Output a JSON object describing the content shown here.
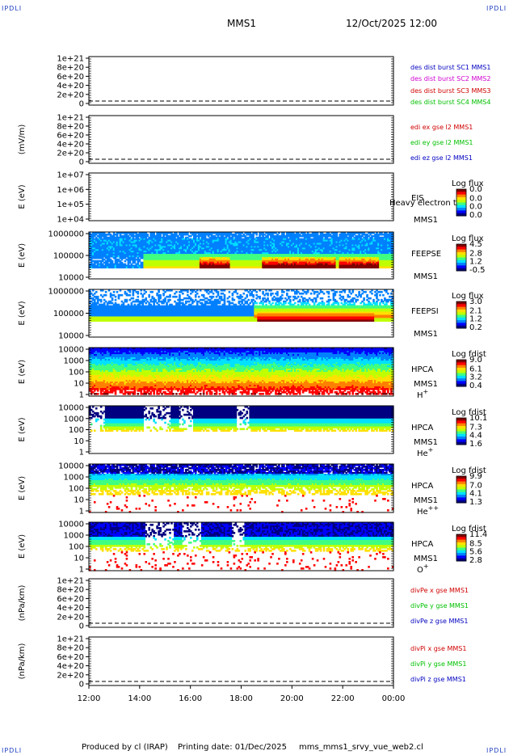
{
  "header": {
    "corner_label": "IPDLI",
    "mission": "MMS1",
    "datetime": "12/Oct/2025 12:00"
  },
  "footer": {
    "produced_by": "Produced by cl (IRAP)",
    "printing_date": "Printing date: 01/Dec/2025",
    "script": "mms_mms1_srvy_vue_web2.cl"
  },
  "colors": {
    "black": "#000000",
    "magenta": "#d000d0",
    "red": "#d00000",
    "green": "#00c000",
    "blue": "#0000c0",
    "colormap": [
      "#000080",
      "#0000ff",
      "#0080ff",
      "#00e0ff",
      "#40ff80",
      "#c0ff00",
      "#ffe000",
      "#ff8000",
      "#ff0000",
      "#800000"
    ]
  },
  "chart_data": [
    {
      "type": "line",
      "panel": "des dist burst",
      "ylabel": "",
      "ytick_labels": [
        "0",
        "2e+20",
        "4e+20",
        "6e+20",
        "8e+20",
        "1e+21"
      ],
      "ylim": [
        -2e+19,
        1.1e+21
      ],
      "zero_line": true,
      "legend": [
        {
          "name": "des dist burst SC1 MMS1",
          "color": "blue"
        },
        {
          "name": "des dist burst SC2 MMS2",
          "color": "magenta"
        },
        {
          "name": "des dist burst SC3 MMS3",
          "color": "red"
        },
        {
          "name": "des dist burst SC4 MMS4",
          "color": "green"
        }
      ],
      "series": []
    },
    {
      "type": "line",
      "panel": "edi e gse l2",
      "ylabel": "(mV/m)",
      "ytick_labels": [
        "0",
        "2e+20",
        "4e+20",
        "6e+20",
        "8e+20",
        "1e+21"
      ],
      "ylim": [
        -2e+19,
        1.1e+21
      ],
      "zero_line": true,
      "legend": [
        {
          "name": "edi ex gse l2 MMS1",
          "color": "red"
        },
        {
          "name": "edi ey gse l2 MMS1",
          "color": "green"
        },
        {
          "name": "edi ez gse l2 MMS1",
          "color": "blue"
        }
      ],
      "series": []
    },
    {
      "type": "heatmap",
      "panel": "EIS",
      "ylabel": "E (eV)",
      "ytick_labels": [
        "1e+04",
        "1e+05",
        "1e+06",
        "1e+07"
      ],
      "scale": "log",
      "ylim": [
        10000.0,
        10000000.0
      ],
      "instrument": [
        "EIS",
        "MMS1"
      ],
      "overlay_text": "Heavy electron to",
      "colorbar": {
        "title": "Log flux",
        "labels": [
          "0.0",
          "0.0",
          "0.0",
          "0.0"
        ]
      },
      "fill": "empty"
    },
    {
      "type": "heatmap",
      "panel": "FEEPSE",
      "ylabel": "E (eV)",
      "ytick_labels": [
        "10000",
        "100000",
        "1000000"
      ],
      "scale": "log",
      "ylim": [
        10000.0,
        1000000.0
      ],
      "instrument": [
        "FEEPSE",
        "MMS1"
      ],
      "colorbar": {
        "title": "Log flux",
        "labels": [
          "4.5",
          "2.8",
          "1.2",
          "-0.5"
        ]
      },
      "fill": "feepse"
    },
    {
      "type": "heatmap",
      "panel": "FEEPSI",
      "ylabel": "E (eV)",
      "ytick_labels": [
        "10000",
        "100000",
        "1000000"
      ],
      "scale": "log",
      "ylim": [
        10000.0,
        1000000.0
      ],
      "instrument": [
        "FEEPSI",
        "MMS1"
      ],
      "colorbar": {
        "title": "Log flux",
        "labels": [
          "3.0",
          "2.1",
          "1.2",
          "0.2"
        ]
      },
      "fill": "feepsi"
    },
    {
      "type": "heatmap",
      "panel": "HPCA H+",
      "ylabel": "E (eV)",
      "ytick_labels": [
        "1",
        "10",
        "100",
        "1000",
        "10000"
      ],
      "scale": "log",
      "ylim": [
        1,
        40000.0
      ],
      "instrument": [
        "HPCA",
        "MMS1"
      ],
      "species": "H",
      "species_sup": "+",
      "colorbar": {
        "title": "Log fdist",
        "labels": [
          "9.0",
          "6.1",
          "3.2",
          "0.4"
        ]
      },
      "fill": "hplus"
    },
    {
      "type": "heatmap",
      "panel": "HPCA He+",
      "ylabel": "E (eV)",
      "ytick_labels": [
        "1",
        "10",
        "100",
        "1000",
        "10000"
      ],
      "scale": "log",
      "ylim": [
        1,
        40000.0
      ],
      "instrument": [
        "HPCA",
        "MMS1"
      ],
      "species": "He",
      "species_sup": "+",
      "colorbar": {
        "title": "Log fdist",
        "labels": [
          "10.1",
          "7.3",
          "4.4",
          "1.6"
        ]
      },
      "fill": "heplus"
    },
    {
      "type": "heatmap",
      "panel": "HPCA He++",
      "ylabel": "E (eV)",
      "ytick_labels": [
        "1",
        "10",
        "100",
        "1000",
        "10000"
      ],
      "scale": "log",
      "ylim": [
        1,
        40000.0
      ],
      "instrument": [
        "HPCA",
        "MMS1"
      ],
      "species": "He",
      "species_sup": "++",
      "colorbar": {
        "title": "Log fdist",
        "labels": [
          "9.9",
          "7.0",
          "4.1",
          "1.3"
        ]
      },
      "fill": "heplusplus"
    },
    {
      "type": "heatmap",
      "panel": "HPCA O+",
      "ylabel": "E (eV)",
      "ytick_labels": [
        "1",
        "10",
        "100",
        "1000",
        "10000"
      ],
      "scale": "log",
      "ylim": [
        1,
        40000.0
      ],
      "instrument": [
        "HPCA",
        "MMS1"
      ],
      "species": "O",
      "species_sup": "+",
      "colorbar": {
        "title": "Log fdist",
        "labels": [
          "11.4",
          "8.5",
          "5.6",
          "2.8"
        ]
      },
      "fill": "oplus"
    },
    {
      "type": "line",
      "panel": "divPe gse",
      "ylabel": "(nPa/km)",
      "ytick_labels": [
        "0",
        "2e+20",
        "4e+20",
        "6e+20",
        "8e+20",
        "1e+21"
      ],
      "ylim": [
        -2e+19,
        1.1e+21
      ],
      "zero_line": true,
      "legend": [
        {
          "name": "divPe x gse MMS1",
          "color": "red"
        },
        {
          "name": "divPe y gse MMS1",
          "color": "green"
        },
        {
          "name": "divPe z gse MMS1",
          "color": "blue"
        }
      ],
      "series": []
    },
    {
      "type": "line",
      "panel": "divPi gse",
      "ylabel": "(nPa/km)",
      "ytick_labels": [
        "0",
        "2e+20",
        "4e+20",
        "6e+20",
        "8e+20",
        "1e+21"
      ],
      "ylim": [
        -2e+19,
        1.1e+21
      ],
      "zero_line": true,
      "legend": [
        {
          "name": "divPi x gse MMS1",
          "color": "red"
        },
        {
          "name": "divPi y gse MMS1",
          "color": "green"
        },
        {
          "name": "divPi z gse MMS1",
          "color": "blue"
        }
      ],
      "series": []
    }
  ],
  "x_axis": {
    "tick_labels": [
      "12:00",
      "14:00",
      "16:00",
      "18:00",
      "20:00",
      "22:00",
      "00:00"
    ]
  }
}
